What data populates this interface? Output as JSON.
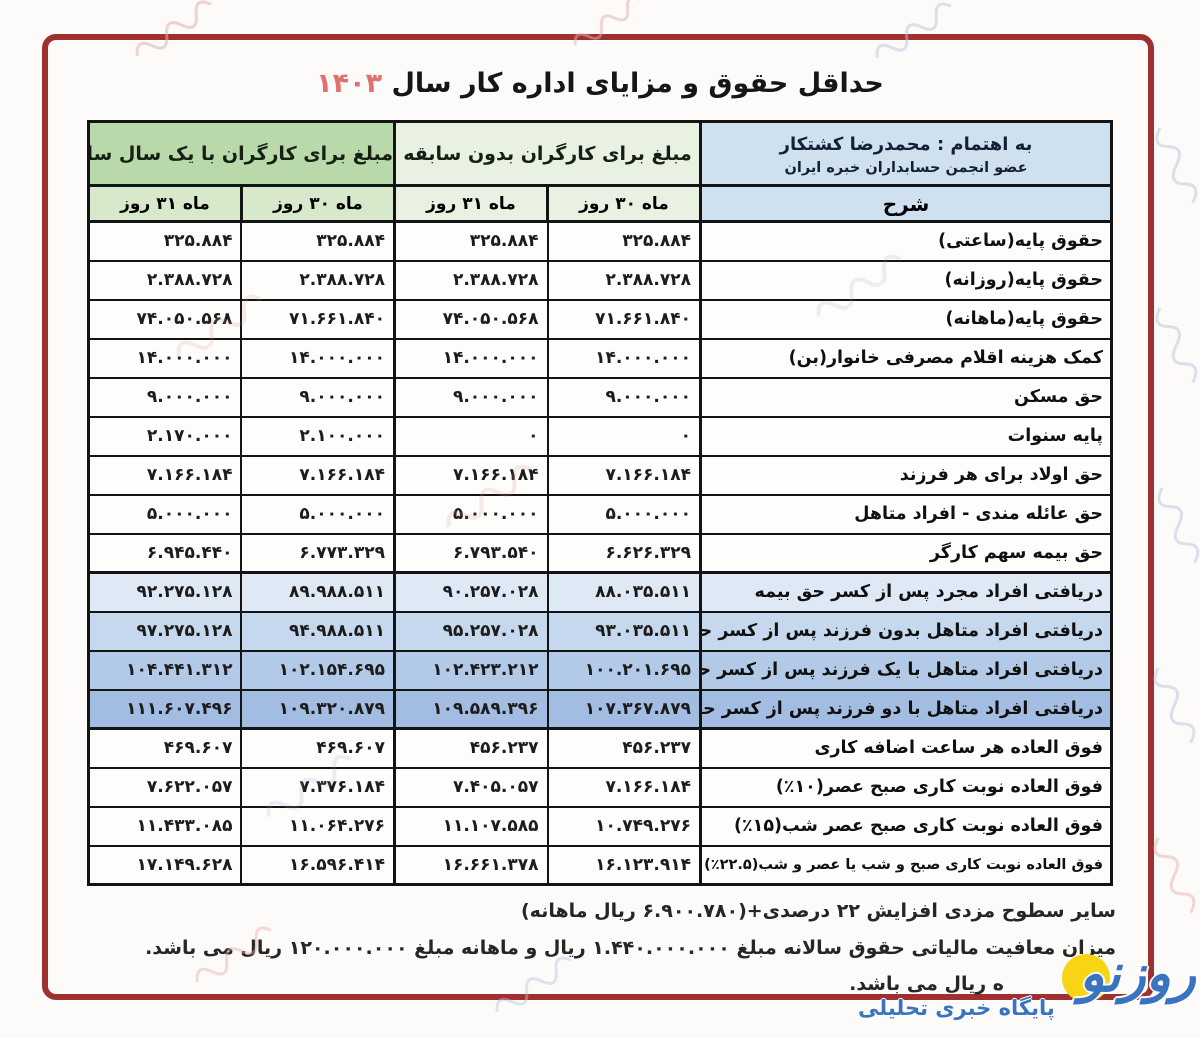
{
  "title": {
    "text": "حداقل حقوق و مزایای اداره کار سال",
    "year": "۱۴۰۳"
  },
  "credit": {
    "line1": "به اهتمام : محمدرضا کشتکار",
    "line2": "عضو انجمن حسابداران خبره ایران"
  },
  "table": {
    "desc_header": "شرح",
    "groups": [
      {
        "label": "مبلغ برای کارگران بدون سابقه",
        "cols": [
          "ماه ۳۰ روز",
          "ماه ۳۱ روز"
        ]
      },
      {
        "label": "مبلغ برای کارگران با یک سال سابقه",
        "cols": [
          "ماه ۳۰ روز",
          "ماه ۳۱ روز"
        ]
      }
    ],
    "rows": [
      {
        "label": "حقوق پایه(ساعتی)",
        "highlight": "",
        "values": [
          "۳۲۵.۸۸۴",
          "۳۲۵.۸۸۴",
          "۳۲۵.۸۸۴",
          "۳۲۵.۸۸۴"
        ]
      },
      {
        "label": "حقوق پایه(روزانه)",
        "highlight": "",
        "values": [
          "۲.۳۸۸.۷۲۸",
          "۲.۳۸۸.۷۲۸",
          "۲.۳۸۸.۷۲۸",
          "۲.۳۸۸.۷۲۸"
        ]
      },
      {
        "label": "حقوق پایه(ماهانه)",
        "highlight": "",
        "values": [
          "۷۱.۶۶۱.۸۴۰",
          "۷۴.۰۵۰.۵۶۸",
          "۷۱.۶۶۱.۸۴۰",
          "۷۴.۰۵۰.۵۶۸"
        ]
      },
      {
        "label": "کمک هزینه اقلام مصرفی خانوار(بن)",
        "highlight": "",
        "values": [
          "۱۴.۰۰۰.۰۰۰",
          "۱۴.۰۰۰.۰۰۰",
          "۱۴.۰۰۰.۰۰۰",
          "۱۴.۰۰۰.۰۰۰"
        ]
      },
      {
        "label": "حق مسکن",
        "highlight": "",
        "values": [
          "۹.۰۰۰.۰۰۰",
          "۹.۰۰۰.۰۰۰",
          "۹.۰۰۰.۰۰۰",
          "۹.۰۰۰.۰۰۰"
        ]
      },
      {
        "label": "پایه سنوات",
        "highlight": "",
        "values": [
          "۰",
          "۰",
          "۲.۱۰۰.۰۰۰",
          "۲.۱۷۰.۰۰۰"
        ]
      },
      {
        "label": "حق اولاد برای هر فرزند",
        "highlight": "",
        "values": [
          "۷.۱۶۶.۱۸۴",
          "۷.۱۶۶.۱۸۴",
          "۷.۱۶۶.۱۸۴",
          "۷.۱۶۶.۱۸۴"
        ]
      },
      {
        "label": "حق عائله مندی - افراد متاهل",
        "highlight": "",
        "values": [
          "۵.۰۰۰.۰۰۰",
          "۵.۰۰۰.۰۰۰",
          "۵.۰۰۰.۰۰۰",
          "۵.۰۰۰.۰۰۰"
        ]
      },
      {
        "label": "حق بیمه سهم کارگر",
        "highlight": "",
        "values": [
          "۶.۶۲۶.۳۲۹",
          "۶.۷۹۳.۵۴۰",
          "۶.۷۷۳.۳۲۹",
          "۶.۹۴۵.۴۴۰"
        ]
      },
      {
        "label": "دریافتی افراد مجرد پس از کسر حق بیمه",
        "highlight": "blue1",
        "values": [
          "۸۸.۰۳۵.۵۱۱",
          "۹۰.۲۵۷.۰۲۸",
          "۸۹.۹۸۸.۵۱۱",
          "۹۲.۲۷۵.۱۲۸"
        ]
      },
      {
        "label": "دریافتی افراد متاهل بدون فرزند پس از کسر حق بیمه",
        "highlight": "blue2",
        "values": [
          "۹۳.۰۳۵.۵۱۱",
          "۹۵.۲۵۷.۰۲۸",
          "۹۴.۹۸۸.۵۱۱",
          "۹۷.۲۷۵.۱۲۸"
        ]
      },
      {
        "label": "دریافتی افراد متاهل با یک فرزند پس از کسر حق بیمه",
        "highlight": "blue3",
        "values": [
          "۱۰۰.۲۰۱.۶۹۵",
          "۱۰۲.۴۲۳.۲۱۲",
          "۱۰۲.۱۵۴.۶۹۵",
          "۱۰۴.۴۴۱.۳۱۲"
        ]
      },
      {
        "label": "دریافتی افراد متاهل با دو فرزند پس از کسر حق بیمه",
        "highlight": "blue4",
        "values": [
          "۱۰۷.۳۶۷.۸۷۹",
          "۱۰۹.۵۸۹.۳۹۶",
          "۱۰۹.۳۲۰.۸۷۹",
          "۱۱۱.۶۰۷.۴۹۶"
        ]
      },
      {
        "label": "فوق العاده هر ساعت اضافه کاری",
        "highlight": "",
        "values": [
          "۴۵۶.۲۳۷",
          "۴۵۶.۲۳۷",
          "۴۶۹.۶۰۷",
          "۴۶۹.۶۰۷"
        ]
      },
      {
        "label": "فوق العاده نوبت کاری صبح عصر(۱۰٪)",
        "highlight": "",
        "values": [
          "۷.۱۶۶.۱۸۴",
          "۷.۴۰۵.۰۵۷",
          "۷.۳۷۶.۱۸۴",
          "۷.۶۲۲.۰۵۷"
        ]
      },
      {
        "label": "فوق العاده نوبت کاری صبح عصر شب(۱۵٪)",
        "highlight": "",
        "values": [
          "۱۰.۷۴۹.۲۷۶",
          "۱۱.۱۰۷.۵۸۵",
          "۱۱.۰۶۴.۲۷۶",
          "۱۱.۴۳۳.۰۸۵"
        ]
      },
      {
        "label": "فوق العاده نوبت کاری صبح و شب یا عصر و شب(۲۲.۵٪)",
        "highlight": "",
        "small": true,
        "values": [
          "۱۶.۱۲۳.۹۱۴",
          "۱۶.۶۶۱.۳۷۸",
          "۱۶.۵۹۶.۴۱۴",
          "۱۷.۱۴۹.۶۲۸"
        ]
      }
    ]
  },
  "footnotes": [
    "سایر سطوح مزدی افزایش ۲۲ درصدی+(۶.۹۰۰.۷۸۰ ریال ماهانه)",
    "میزان معافیت مالیاتی حقوق سالانه مبلغ ۱.۴۴۰.۰۰۰.۰۰۰ ریال و ماهانه مبلغ ۱۲۰.۰۰۰.۰۰۰ ریال می باشد.",
    "ه ریال می باشد."
  ],
  "logo": {
    "name": "روزنو",
    "tagline": "پایگاه خبری تحلیلی"
  },
  "colors": {
    "frame_red": "#9e3030",
    "title_year_red": "#e0716c",
    "header_blue": "#cfe0ef",
    "group_green_dark": "#b9d9aa",
    "group_green_pale": "#e9f1e2",
    "subheader_green": "#d8e9cb",
    "blue_row_1": "#dfe9f6",
    "blue_row_2": "#c6d8ee",
    "blue_row_3": "#b2c9e7",
    "blue_row_4": "#a3bce1",
    "logo_blue": "#3a74c0",
    "logo_yellow": "#f7d414"
  }
}
